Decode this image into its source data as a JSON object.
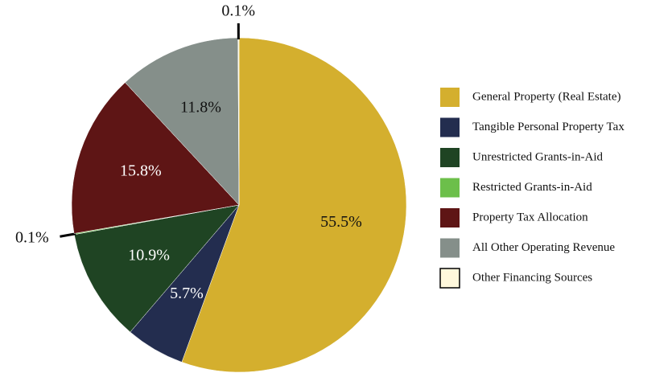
{
  "chart_data": {
    "type": "pie",
    "categories": [
      "General Property (Real Estate)",
      "Tangible Personal Property Tax",
      "Unrestricted Grants-in-Aid",
      "Restricted Grants-in-Aid",
      "Property Tax Allocation",
      "All Other Operating Revenue",
      "Other Financing Sources"
    ],
    "values": [
      55.5,
      5.7,
      10.9,
      0.1,
      15.8,
      11.8,
      0.1
    ],
    "value_labels": [
      "55.5%",
      "5.7%",
      "10.9%",
      "0.1%",
      "15.8%",
      "11.8%",
      "0.1%"
    ],
    "colors": [
      "#d4af2e",
      "#232d4f",
      "#1f4423",
      "#6cbf4a",
      "#5e1515",
      "#858f8a",
      "#fff8dc"
    ],
    "legend": "right"
  }
}
